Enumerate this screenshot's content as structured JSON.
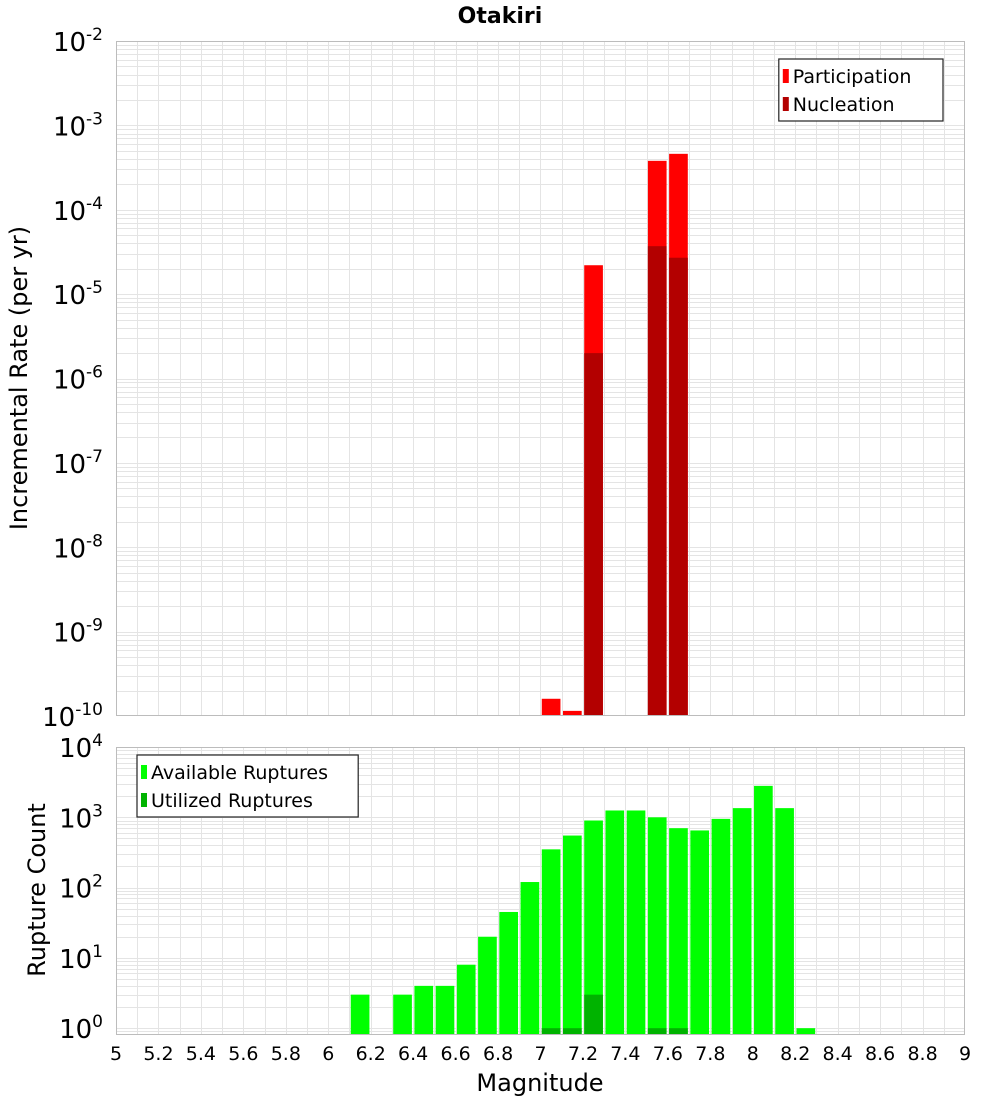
{
  "chart_data": [
    {
      "type": "bar",
      "title": "Otakiri",
      "ylabel": "Incremental Rate (per yr)",
      "yscale": "log",
      "ylim": [
        1e-10,
        0.01
      ],
      "y_ticks": [
        {
          "base": "10",
          "exp": "-10"
        },
        {
          "base": "10",
          "exp": "-9"
        },
        {
          "base": "10",
          "exp": "-8"
        },
        {
          "base": "10",
          "exp": "-7"
        },
        {
          "base": "10",
          "exp": "-6"
        },
        {
          "base": "10",
          "exp": "-5"
        },
        {
          "base": "10",
          "exp": "-4"
        },
        {
          "base": "10",
          "exp": "-3"
        },
        {
          "base": "10",
          "exp": "-2"
        }
      ],
      "xlim": [
        5,
        9
      ],
      "bin_width": 0.1,
      "grid": true,
      "legend_position": "top-right",
      "series": [
        {
          "name": "Participation",
          "color": "#ff0000",
          "points": [
            [
              7.05,
              1.6e-10
            ],
            [
              7.15,
              1.15e-10
            ],
            [
              7.25,
              2.2e-05
            ],
            [
              7.55,
              0.00038
            ],
            [
              7.65,
              0.00046
            ]
          ]
        },
        {
          "name": "Nucleation",
          "color": "#b30000",
          "points": [
            [
              7.25,
              2e-06
            ],
            [
              7.55,
              3.7e-05
            ],
            [
              7.65,
              2.7e-05
            ]
          ]
        }
      ]
    },
    {
      "type": "bar",
      "xlabel": "Magnitude",
      "ylabel": "Rupture Count",
      "yscale": "log",
      "ylim": [
        0.8,
        10000
      ],
      "y_ticks": [
        {
          "base": "10",
          "exp": "0"
        },
        {
          "base": "10",
          "exp": "1"
        },
        {
          "base": "10",
          "exp": "2"
        },
        {
          "base": "10",
          "exp": "3"
        },
        {
          "base": "10",
          "exp": "4"
        }
      ],
      "xlim": [
        5,
        9
      ],
      "x_ticks": [
        "5",
        "5.2",
        "5.4",
        "5.6",
        "5.8",
        "6",
        "6.2",
        "6.4",
        "6.6",
        "6.8",
        "7",
        "7.2",
        "7.4",
        "7.6",
        "7.8",
        "8",
        "8.2",
        "8.4",
        "8.6",
        "8.8",
        "9"
      ],
      "bin_width": 0.1,
      "grid": true,
      "legend_position": "top-left",
      "series": [
        {
          "name": "Available Ruptures",
          "color": "#00ff00",
          "points": [
            [
              6.15,
              3
            ],
            [
              6.35,
              3
            ],
            [
              6.45,
              4
            ],
            [
              6.55,
              4
            ],
            [
              6.65,
              8
            ],
            [
              6.75,
              20
            ],
            [
              6.85,
              45
            ],
            [
              6.95,
              120
            ],
            [
              7.05,
              350
            ],
            [
              7.15,
              550
            ],
            [
              7.25,
              900
            ],
            [
              7.35,
              1250
            ],
            [
              7.45,
              1250
            ],
            [
              7.55,
              1000
            ],
            [
              7.65,
              700
            ],
            [
              7.75,
              650
            ],
            [
              7.85,
              950
            ],
            [
              7.95,
              1350
            ],
            [
              8.05,
              2800
            ],
            [
              8.15,
              1350
            ],
            [
              8.25,
              1
            ]
          ]
        },
        {
          "name": "Utilized Ruptures",
          "color": "#00b300",
          "points": [
            [
              7.05,
              1
            ],
            [
              7.15,
              1
            ],
            [
              7.25,
              3
            ],
            [
              7.55,
              1
            ],
            [
              7.65,
              1
            ]
          ]
        }
      ]
    }
  ]
}
